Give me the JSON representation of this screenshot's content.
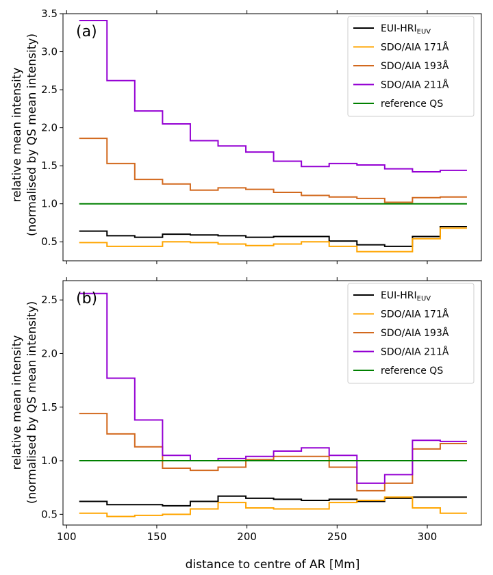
{
  "chart_data": {
    "type": "line",
    "step": "post",
    "xlabel": "distance to centre of AR [Mm]",
    "ylabel_line1": "relative mean intensity",
    "ylabel_line2": "(normalised by QS mean intensity)",
    "xlim": [
      98,
      330
    ],
    "x_ticks": [
      "100",
      "150",
      "200",
      "250",
      "300"
    ],
    "bin_edges": [
      107,
      122.4,
      137.8,
      153.2,
      168.6,
      184,
      199.4,
      214.8,
      230.2,
      245.6,
      261,
      276.4,
      291.8,
      307.2,
      322
    ],
    "legend": [
      {
        "main": "EUI-HRI",
        "sub": "EUV",
        "color": "#000000"
      },
      {
        "main": "SDO/AIA 171Å",
        "sub": "",
        "color": "#FFA500"
      },
      {
        "main": "SDO/AIA 193Å",
        "sub": "",
        "color": "#D2691E"
      },
      {
        "main": "SDO/AIA 211Å",
        "sub": "",
        "color": "#9400D3"
      },
      {
        "main": "reference QS",
        "sub": "",
        "color": "#008000"
      }
    ],
    "panels": [
      {
        "label": "(a)",
        "ylim": [
          0.25,
          3.5
        ],
        "y_ticks": [
          "0.5",
          "1.0",
          "1.5",
          "2.0",
          "2.5",
          "3.0",
          "3.5"
        ],
        "series": [
          {
            "name": "EUI-HRI_EUV",
            "values": [
              0.64,
              0.58,
              0.56,
              0.6,
              0.59,
              0.58,
              0.56,
              0.57,
              0.57,
              0.51,
              0.46,
              0.44,
              0.57,
              0.7
            ]
          },
          {
            "name": "SDO/AIA 171Å",
            "values": [
              0.49,
              0.44,
              0.44,
              0.5,
              0.49,
              0.47,
              0.45,
              0.47,
              0.5,
              0.44,
              0.37,
              0.37,
              0.54,
              0.68
            ]
          },
          {
            "name": "SDO/AIA 193Å",
            "values": [
              1.86,
              1.53,
              1.32,
              1.26,
              1.18,
              1.21,
              1.19,
              1.15,
              1.11,
              1.09,
              1.07,
              1.02,
              1.08,
              1.09
            ]
          },
          {
            "name": "SDO/AIA 211Å",
            "values": [
              3.41,
              2.62,
              2.22,
              2.05,
              1.83,
              1.76,
              1.68,
              1.56,
              1.49,
              1.53,
              1.51,
              1.46,
              1.42,
              1.44
            ]
          },
          {
            "name": "reference QS",
            "values": [
              1,
              1,
              1,
              1,
              1,
              1,
              1,
              1,
              1,
              1,
              1,
              1,
              1,
              1
            ]
          }
        ]
      },
      {
        "label": "(b)",
        "ylim": [
          0.4,
          2.68
        ],
        "y_ticks": [
          "0.5",
          "1.0",
          "1.5",
          "2.0",
          "2.5"
        ],
        "series": [
          {
            "name": "EUI-HRI_EUV",
            "values": [
              0.62,
              0.59,
              0.59,
              0.58,
              0.62,
              0.67,
              0.65,
              0.64,
              0.63,
              0.64,
              0.62,
              0.65,
              0.66,
              0.66
            ]
          },
          {
            "name": "SDO/AIA 171Å",
            "values": [
              0.51,
              0.48,
              0.49,
              0.5,
              0.55,
              0.61,
              0.56,
              0.55,
              0.55,
              0.61,
              0.63,
              0.66,
              0.56,
              0.51
            ]
          },
          {
            "name": "SDO/AIA 193Å",
            "values": [
              1.44,
              1.25,
              1.13,
              0.93,
              0.91,
              0.94,
              1.01,
              1.04,
              1.04,
              0.94,
              0.72,
              0.79,
              1.11,
              1.16
            ]
          },
          {
            "name": "SDO/AIA 211Å",
            "values": [
              2.56,
              1.77,
              1.38,
              1.05,
              1.0,
              1.02,
              1.04,
              1.09,
              1.12,
              1.05,
              0.79,
              0.87,
              1.19,
              1.18
            ]
          },
          {
            "name": "reference QS",
            "values": [
              1,
              1,
              1,
              1,
              1,
              1,
              1,
              1,
              1,
              1,
              1,
              1,
              1,
              1
            ]
          }
        ]
      }
    ]
  }
}
